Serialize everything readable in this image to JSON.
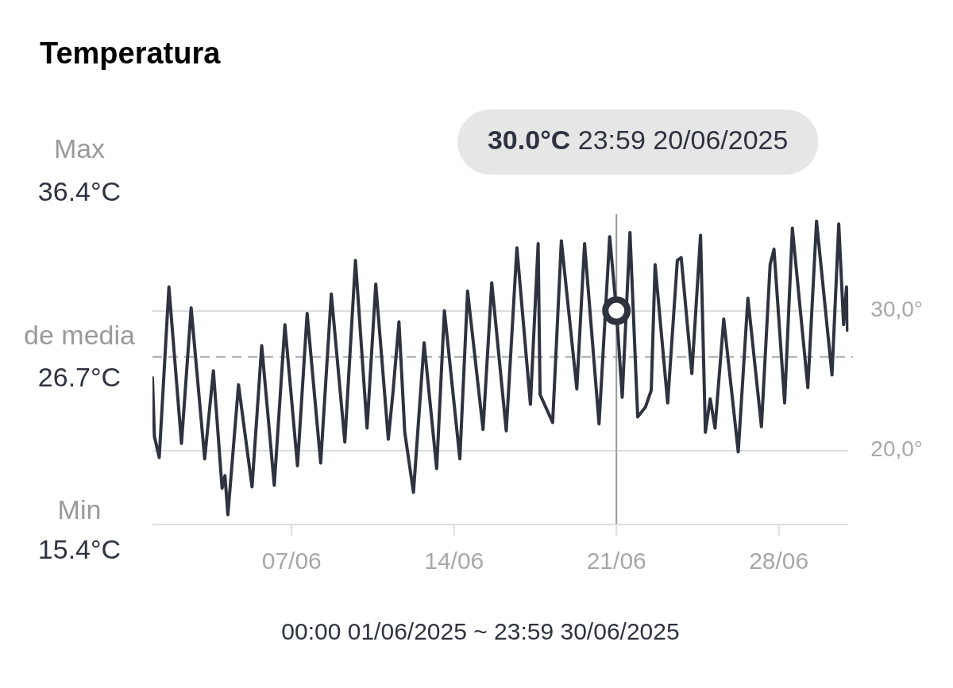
{
  "chart_data": {
    "type": "line",
    "title": "Temperatura",
    "x": [
      "2025-06-01T00:00",
      "2025-06-01T02:00",
      "2025-06-01T07:00",
      "2025-06-01T17:00",
      "2025-06-02T06:00",
      "2025-06-02T16:00",
      "2025-06-03T06:00",
      "2025-06-03T15:00",
      "2025-06-04T00:00",
      "2025-06-04T03:00",
      "2025-06-04T06:00",
      "2025-06-04T17:00",
      "2025-06-05T07:00",
      "2025-06-05T17:00",
      "2025-06-06T06:00",
      "2025-06-06T17:00",
      "2025-06-07T06:00",
      "2025-06-07T16:00",
      "2025-06-08T06:00",
      "2025-06-08T17:00",
      "2025-06-09T07:00",
      "2025-06-09T18:00",
      "2025-06-10T06:00",
      "2025-06-10T15:00",
      "2025-06-11T04:00",
      "2025-06-11T09:00",
      "2025-06-11T15:00",
      "2025-06-11T21:00",
      "2025-06-12T06:00",
      "2025-06-12T17:00",
      "2025-06-13T06:00",
      "2025-06-13T14:00",
      "2025-06-14T06:00",
      "2025-06-14T14:00",
      "2025-06-15T06:00",
      "2025-06-15T15:00",
      "2025-06-16T06:00",
      "2025-06-16T17:00",
      "2025-06-17T07:00",
      "2025-06-17T15:00",
      "2025-06-17T17:00",
      "2025-06-18T06:00",
      "2025-06-18T15:00",
      "2025-06-19T07:00",
      "2025-06-19T15:00",
      "2025-06-20T06:00",
      "2025-06-20T17:00",
      "2025-06-20T23:59",
      "2025-06-21T06:00",
      "2025-06-21T14:00",
      "2025-06-21T22:00",
      "2025-06-22T06:00",
      "2025-06-22T12:00",
      "2025-06-22T16:00",
      "2025-06-23T05:00",
      "2025-06-23T15:00",
      "2025-06-23T19:00",
      "2025-06-24T06:00",
      "2025-06-24T15:00",
      "2025-06-24T20:00",
      "2025-06-25T01:00",
      "2025-06-25T06:00",
      "2025-06-25T15:00",
      "2025-06-26T06:00",
      "2025-06-26T16:00",
      "2025-06-27T06:00",
      "2025-06-27T15:00",
      "2025-06-27T19:00",
      "2025-06-28T06:00",
      "2025-06-28T14:00",
      "2025-06-29T06:00",
      "2025-06-29T15:00",
      "2025-06-30T07:00",
      "2025-06-30T14:00",
      "2025-06-30T19:00",
      "2025-06-30T22:00",
      "2025-06-30T23:00"
    ],
    "series": [
      {
        "color": "#2f3340",
        "values": [
          25.2,
          21.0,
          19.5,
          31.7,
          20.5,
          30.2,
          19.4,
          25.7,
          17.3,
          18.2,
          15.4,
          24.7,
          17.4,
          27.5,
          17.5,
          29.0,
          18.9,
          29.8,
          19.1,
          31.2,
          20.6,
          33.6,
          21.6,
          31.9,
          20.8,
          24.3,
          29.2,
          21.3,
          17.0,
          27.7,
          18.7,
          30.0,
          19.4,
          31.4,
          21.5,
          32.0,
          21.4,
          34.5,
          23.3,
          34.8,
          24.0,
          22.0,
          35.0,
          24.4,
          34.8,
          21.9,
          35.3,
          30.0,
          23.8,
          35.6,
          22.4,
          23.1,
          24.3,
          33.3,
          23.4,
          33.6,
          33.8,
          25.5,
          35.4,
          21.3,
          23.7,
          21.6,
          29.4,
          19.9,
          30.9,
          21.7,
          33.3,
          34.4,
          23.4,
          35.9,
          24.5,
          36.4,
          25.4,
          36.2,
          29.0,
          31.7,
          28.6
        ]
      }
    ],
    "xlim": [
      "2025-06-01T00:00",
      "2025-06-30T23:59"
    ],
    "xticks": [
      {
        "value": "2025-06-07",
        "label": "07/06"
      },
      {
        "value": "2025-06-14",
        "label": "14/06"
      },
      {
        "value": "2025-06-21",
        "label": "21/06"
      },
      {
        "value": "2025-06-28",
        "label": "28/06"
      }
    ],
    "ylim": [
      14.7,
      36.9
    ],
    "yticks": [
      {
        "value": 20,
        "label": "20,0°"
      },
      {
        "value": 30,
        "label": "30,0°"
      }
    ],
    "grid": "y",
    "legend": false,
    "marker": "none",
    "line_style": "solid",
    "ref_lines": [
      {
        "axis": "y",
        "value": 26.7,
        "label": "de media",
        "line_style": "dashed",
        "color": "#aaaaaa"
      },
      {
        "axis": "x",
        "value": "2025-06-20T23:59",
        "color": "#9a9a9a"
      }
    ],
    "annotations": [
      "Max",
      "36.4°C",
      "26.7°C",
      "Min",
      "15.4°C",
      "00:00 01/06/2025 ~ 23:59 30/06/2025",
      "30.0°C 23:59 20/06/2025"
    ]
  }
}
